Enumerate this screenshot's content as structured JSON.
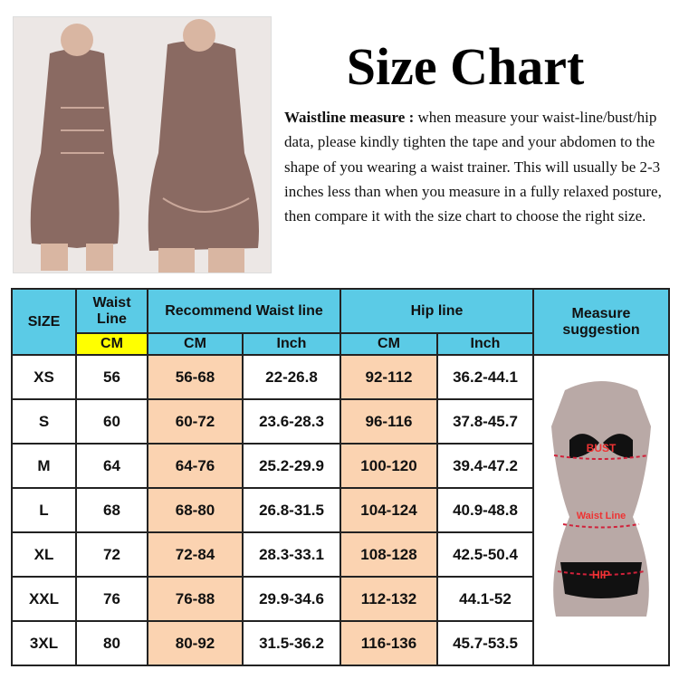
{
  "title": "Size Chart",
  "description": {
    "label": "Waistline measure :",
    "text": " when measure your waist-line/bust/hip data, please kindly tighten the tape and your abdomen to the shape of you wearing a waist trainer. This will usually be 2-3 inches less than when you measure in a fully relaxed posture, then compare it with the size chart to choose the right size."
  },
  "colors": {
    "header": "#5bcbe6",
    "highlight": "#ffff00",
    "peach": "#fbd3b1"
  },
  "table": {
    "headers": {
      "size": "SIZE",
      "waist_line": "Waist Line",
      "recommend_waist": "Recommend Waist line",
      "hip_line": "Hip line",
      "measure": "Measure suggestion",
      "cm": "CM",
      "inch": "Inch"
    },
    "rows": [
      {
        "size": "XS",
        "waist": "56",
        "rw_cm": "56-68",
        "rw_inch": "22-26.8",
        "hip_cm": "92-112",
        "hip_inch": "36.2-44.1"
      },
      {
        "size": "S",
        "waist": "60",
        "rw_cm": "60-72",
        "rw_inch": "23.6-28.3",
        "hip_cm": "96-116",
        "hip_inch": "37.8-45.7"
      },
      {
        "size": "M",
        "waist": "64",
        "rw_cm": "64-76",
        "rw_inch": "25.2-29.9",
        "hip_cm": "100-120",
        "hip_inch": "39.4-47.2"
      },
      {
        "size": "L",
        "waist": "68",
        "rw_cm": "68-80",
        "rw_inch": "26.8-31.5",
        "hip_cm": "104-124",
        "hip_inch": "40.9-48.8"
      },
      {
        "size": "XL",
        "waist": "72",
        "rw_cm": "72-84",
        "rw_inch": "28.3-33.1",
        "hip_cm": "108-128",
        "hip_inch": "42.5-50.4"
      },
      {
        "size": "XXL",
        "waist": "76",
        "rw_cm": "76-88",
        "rw_inch": "29.9-34.6",
        "hip_cm": "112-132",
        "hip_inch": "44.1-52"
      },
      {
        "size": "3XL",
        "waist": "80",
        "rw_cm": "80-92",
        "rw_inch": "31.5-36.2",
        "hip_cm": "116-136",
        "hip_inch": "45.7-53.5"
      }
    ]
  },
  "figure_labels": {
    "bust": "BUST",
    "waist": "Waist Line",
    "hip": "HIP"
  }
}
